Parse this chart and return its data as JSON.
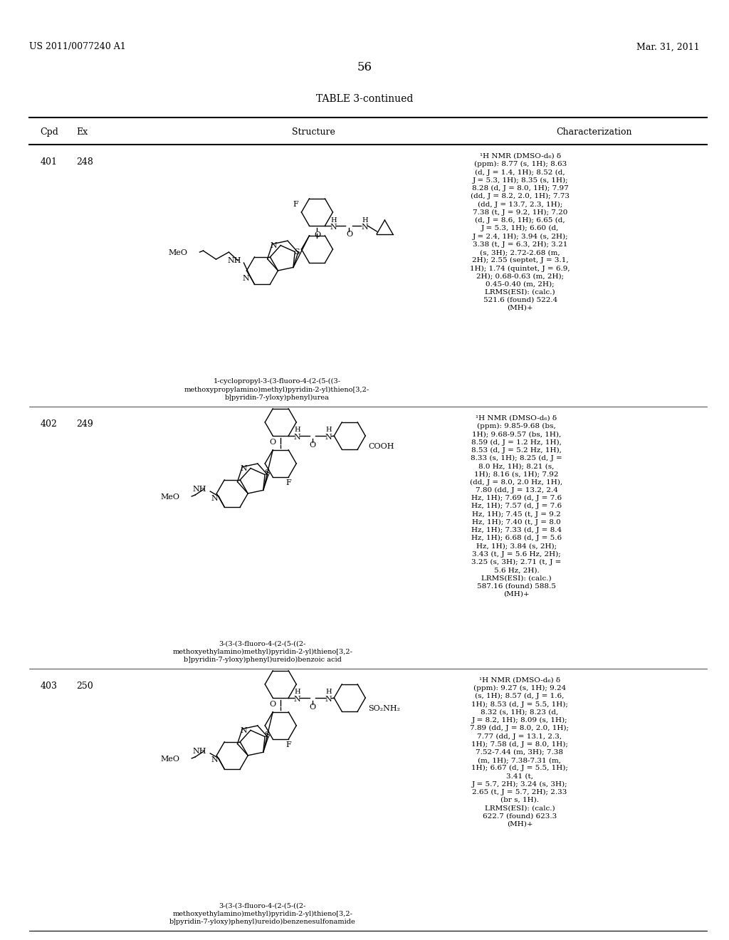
{
  "page_header_left": "US 2011/0077240 A1",
  "page_header_right": "Mar. 31, 2011",
  "page_number": "56",
  "table_title": "TABLE 3-continued",
  "col_headers": [
    "Cpd",
    "Ex",
    "Structure",
    "Characterization"
  ],
  "rows": [
    {
      "cpd": "401",
      "ex": "248",
      "structure_name": "1-cyclopropyl-3-(3-fluoro-4-(2-(5-((3-\nmethoxypropylamino)methyl)pyridin-2-yl)thieno[3,2-\nb]pyridin-7-yloxy)phenyl)urea",
      "characterization": "¹H NMR (DMSO-d₆) δ\n(ppm): 8.77 (s, 1H); 8.63\n(d, J = 1.4, 1H); 8.52 (d,\nJ = 5.3, 1H); 8.35 (s, 1H);\n8.28 (d, J = 8.0, 1H); 7.97\n(dd, J = 8.2, 2.0, 1H); 7.73\n(dd, J = 13.7, 2.3, 1H);\n7.38 (t, J = 9.2, 1H); 7.20\n(d, J = 8.6, 1H); 6.65 (d,\nJ = 5.3, 1H); 6.60 (d,\nJ = 2.4, 1H); 3.94 (s, 2H);\n3.38 (t, J = 6.3, 2H); 3.21\n(s, 3H); 2.72-2.68 (m,\n2H); 2.55 (septet, J = 3.1,\n1H); 1.74 (quintet, J = 6.9,\n2H); 0.68-0.63 (m, 2H);\n0.45-0.40 (m, 2H);\nLRMS(ESI): (calc.)\n521.6 (found) 522.4\n(MH)+"
    },
    {
      "cpd": "402",
      "ex": "249",
      "structure_name": "3-(3-(3-fluoro-4-(2-(5-((2-\nmethoxyethylamino)methyl)pyridin-2-yl)thieno[3,2-\nb]pyridin-7-yloxy)phenyl)ureido)benzoic acid",
      "characterization": "¹H NMR (DMSO-d₆) δ\n(ppm): 9.85-9.68 (bs,\n1H); 9.68-9.57 (bs, 1H),\n8.59 (d, J = 1.2 Hz, 1H),\n8.53 (d, J = 5.2 Hz, 1H),\n8.33 (s, 1H); 8.25 (d, J =\n8.0 Hz, 1H); 8.21 (s,\n1H); 8.16 (s, 1H); 7.92\n(dd, J = 8.0, 2.0 Hz, 1H),\n7.80 (dd, J = 13.2, 2.4\nHz, 1H); 7.69 (d, J = 7.6\nHz, 1H); 7.57 (d, J = 7.6\nHz, 1H); 7.45 (t, J = 9.2\nHz, 1H); 7.40 (t, J = 8.0\nHz, 1H); 7.33 (d, J = 8.4\nHz, 1H); 6.68 (d, J = 5.6\nHz, 1H); 3.84 (s, 2H);\n3.43 (t, J = 5.6 Hz, 2H);\n3.25 (s, 3H); 2.71 (t, J =\n5.6 Hz, 2H).\nLRMS(ESI): (calc.)\n587.16 (found) 588.5\n(MH)+"
    },
    {
      "cpd": "403",
      "ex": "250",
      "structure_name": "3-(3-(3-fluoro-4-(2-(5-((2-\nmethoxyethylamino)methyl)pyridin-2-yl)thieno[3,2-\nb]pyridin-7-yloxy)phenyl)ureido)benzenesulfonamide",
      "characterization": "¹H NMR (DMSO-d₆) δ\n(ppm): 9.27 (s, 1H); 9.24\n(s, 1H); 8.57 (d, J = 1.6,\n1H); 8.53 (d, J = 5.5, 1H);\n8.32 (s, 1H); 8.23 (d,\nJ = 8.2, 1H); 8.09 (s, 1H);\n7.89 (dd, J = 8.0, 2.0, 1H);\n7.77 (dd, J = 13.1, 2.3,\n1H); 7.58 (d, J = 8.0, 1H);\n7.52-7.44 (m, 3H); 7.38\n(m, 1H); 7.38-7.31 (m,\n1H); 6.67 (d, J = 5.5, 1H);\n3.41 (t,\nJ = 5.7, 2H); 3.24 (s, 3H);\n2.65 (t, J = 5.7, 2H); 2.33\n(br s, 1H).\nLRMS(ESI): (calc.)\n622.7 (found) 623.3\n(MH)+"
    }
  ],
  "bg_color": "#ffffff",
  "text_color": "#000000"
}
